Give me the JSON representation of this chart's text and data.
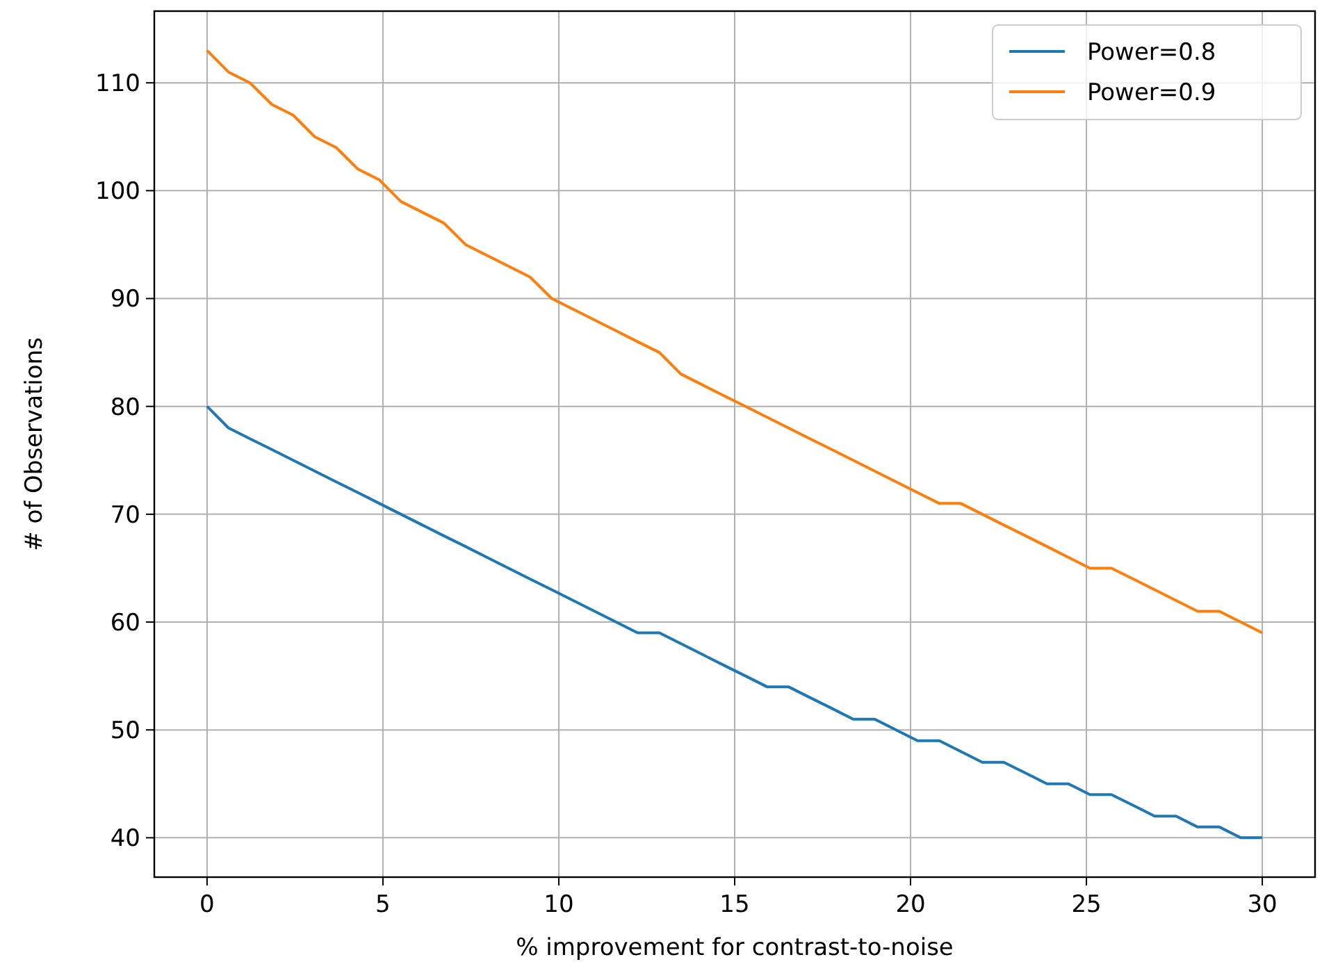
{
  "chart_data": {
    "type": "line",
    "xlabel": "% improvement for contrast-to-noise",
    "ylabel": "# of Observations",
    "x": [
      0,
      0.61,
      1.22,
      1.84,
      2.45,
      3.06,
      3.67,
      4.29,
      4.9,
      5.51,
      6.12,
      6.73,
      7.35,
      7.96,
      8.57,
      9.18,
      9.8,
      10.41,
      11.02,
      11.63,
      12.24,
      12.86,
      13.47,
      14.08,
      14.69,
      15.31,
      15.92,
      16.53,
      17.14,
      17.76,
      18.37,
      18.98,
      19.59,
      20.2,
      20.82,
      21.43,
      22.04,
      22.65,
      23.27,
      23.88,
      24.49,
      25.1,
      25.71,
      26.33,
      26.94,
      27.55,
      28.16,
      28.78,
      29.39,
      30
    ],
    "series": [
      {
        "name": "Power=0.8",
        "color": "#1f77b4",
        "values": [
          80,
          78,
          77,
          76,
          75,
          74,
          73,
          72,
          71,
          70,
          69,
          68,
          67,
          66,
          65,
          64,
          63,
          62,
          61,
          60,
          59,
          59,
          58,
          57,
          56,
          55,
          54,
          54,
          53,
          52,
          51,
          51,
          50,
          49,
          49,
          48,
          47,
          47,
          46,
          45,
          45,
          44,
          44,
          43,
          42,
          42,
          41,
          41,
          40,
          40
        ]
      },
      {
        "name": "Power=0.9",
        "color": "#ff7f0e",
        "values": [
          113,
          111,
          110,
          108,
          107,
          105,
          104,
          102,
          101,
          99,
          98,
          97,
          95,
          94,
          93,
          92,
          90,
          89,
          88,
          87,
          86,
          85,
          83,
          82,
          81,
          80,
          79,
          78,
          77,
          76,
          75,
          74,
          73,
          72,
          71,
          71,
          70,
          69,
          68,
          67,
          66,
          65,
          65,
          64,
          63,
          62,
          61,
          61,
          60,
          59
        ]
      }
    ],
    "xlim": [
      -1.5,
      31.5
    ],
    "xticks": [
      0,
      5,
      10,
      15,
      20,
      25,
      30
    ],
    "ylim": [
      36.35,
      116.65
    ],
    "yticks": [
      40,
      50,
      60,
      70,
      80,
      90,
      100,
      110
    ],
    "grid": true,
    "legend": "top right",
    "line_style": "solid",
    "marker": "none"
  }
}
